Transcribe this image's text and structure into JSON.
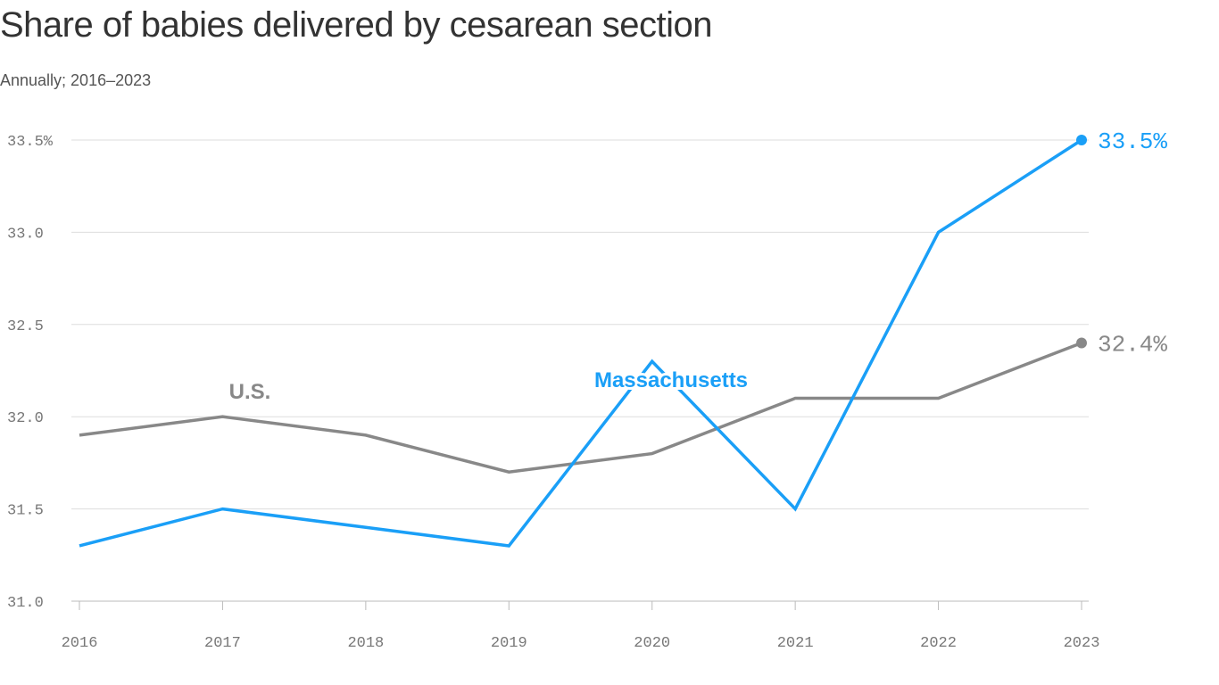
{
  "chart_data": {
    "type": "line",
    "title": "Share of babies delivered by cesarean section",
    "subtitle": "Annually; 2016–2023",
    "x": [
      2016,
      2017,
      2018,
      2019,
      2020,
      2021,
      2022,
      2023
    ],
    "x_tick_labels": [
      "2016",
      "2017",
      "2018",
      "2019",
      "2020",
      "2021",
      "2022",
      "2023"
    ],
    "ylim": [
      31.0,
      33.5
    ],
    "y_ticks": [
      31.0,
      31.5,
      32.0,
      32.5,
      33.0,
      33.5
    ],
    "y_tick_labels": [
      "31.0",
      "31.5",
      "32.0",
      "32.5",
      "33.0",
      "33.5%"
    ],
    "grid": true,
    "series": [
      {
        "name": "U.S.",
        "color": "#888888",
        "values": [
          31.9,
          32.0,
          31.9,
          31.7,
          31.8,
          32.1,
          32.1,
          32.4
        ],
        "end_label": "32.4%"
      },
      {
        "name": "Massachusetts",
        "color": "#1a9ff7",
        "values": [
          31.3,
          31.5,
          31.4,
          31.3,
          32.3,
          31.5,
          33.0,
          33.5
        ],
        "end_label": "33.5%"
      }
    ]
  }
}
